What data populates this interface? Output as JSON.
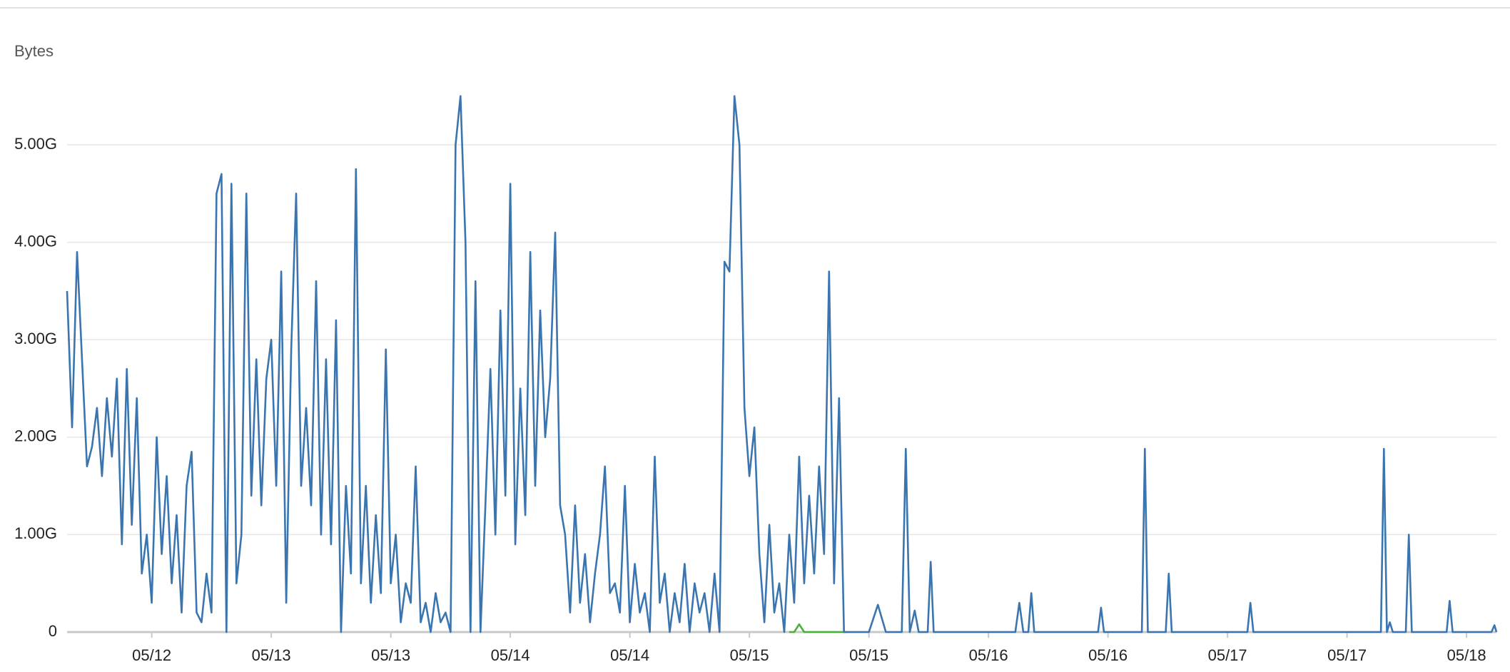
{
  "chart_data": {
    "type": "line",
    "y_axis_label": "Bytes",
    "xlim": [
      0,
      143.5
    ],
    "xticks": [
      {
        "value": 8.5,
        "label": "05/12"
      },
      {
        "value": 20.5,
        "label": "05/13"
      },
      {
        "value": 32.5,
        "label": "05/13"
      },
      {
        "value": 44.5,
        "label": "05/14"
      },
      {
        "value": 56.5,
        "label": "05/14"
      },
      {
        "value": 68.5,
        "label": "05/15"
      },
      {
        "value": 80.5,
        "label": "05/15"
      },
      {
        "value": 92.5,
        "label": "05/16"
      },
      {
        "value": 104.5,
        "label": "05/16"
      },
      {
        "value": 116.5,
        "label": "05/17"
      },
      {
        "value": 128.5,
        "label": "05/17"
      },
      {
        "value": 140.5,
        "label": "05/18"
      }
    ],
    "ylim": [
      0,
      5.6
    ],
    "yticks": [
      0,
      {
        "value": 1,
        "label": "1.00G"
      },
      {
        "value": 2,
        "label": "2.00G"
      },
      {
        "value": 3,
        "label": "3.00G"
      },
      {
        "value": 4,
        "label": "4.00G"
      },
      {
        "value": 5,
        "label": "5.00G"
      }
    ],
    "grid": true,
    "series": [
      {
        "color": "#3a75b0",
        "x": [
          0,
          0.5,
          1,
          1.5,
          2,
          2.5,
          3,
          3.5,
          4,
          4.5,
          5,
          5.5,
          6,
          6.5,
          7,
          7.5,
          8,
          8.5,
          9,
          9.5,
          10,
          10.5,
          11,
          11.5,
          12,
          12.5,
          13,
          13.5,
          14,
          14.5,
          15,
          15.5,
          16,
          16.5,
          17,
          17.5,
          18,
          18.5,
          19,
          19.5,
          20,
          20.5,
          21,
          21.5,
          22,
          22.5,
          23,
          23.5,
          24,
          24.5,
          25,
          25.5,
          26,
          26.5,
          27,
          27.5,
          28,
          28.5,
          29,
          29.5,
          30,
          30.5,
          31,
          31.5,
          32,
          32.5,
          33,
          33.5,
          34,
          34.5,
          35,
          35.5,
          36,
          36.5,
          37,
          37.5,
          38,
          38.5,
          39,
          39.5,
          40,
          40.5,
          41,
          41.5,
          42,
          42.5,
          43,
          43.5,
          44,
          44.5,
          45,
          45.5,
          46,
          46.5,
          47,
          47.5,
          48,
          48.5,
          49,
          49.5,
          50,
          50.5,
          51,
          51.5,
          52,
          52.5,
          53,
          53.5,
          54,
          54.5,
          55,
          55.5,
          56,
          56.5,
          57,
          57.5,
          58,
          58.5,
          59,
          59.5,
          60,
          60.5,
          61,
          61.5,
          62,
          62.5,
          63,
          63.5,
          64,
          64.5,
          65,
          65.5,
          66,
          66.5,
          67,
          67.5,
          68,
          68.5,
          69,
          69.5,
          70,
          70.5,
          71,
          71.5,
          72,
          72.5,
          73,
          73.5,
          74,
          74.5,
          75,
          75.5,
          76,
          76.5,
          77,
          77.5,
          78,
          80.5,
          81.4,
          82.2,
          83.8,
          84.2,
          84.6,
          85.1,
          85.5,
          86.4,
          86.7,
          87,
          95.2,
          95.6,
          96,
          96.5,
          96.8,
          97.1,
          103.5,
          103.8,
          104.1,
          107.9,
          108.2,
          108.5,
          110.3,
          110.6,
          110.9,
          118.5,
          118.8,
          119.1,
          131.9,
          132.2,
          132.5,
          132.8,
          133.1,
          134.4,
          134.7,
          135,
          138.5,
          138.8,
          139.1,
          143,
          143.3,
          143.5
        ],
        "values": [
          3.5,
          2.1,
          3.9,
          2.8,
          1.7,
          1.9,
          2.3,
          1.6,
          2.4,
          1.8,
          2.6,
          0.9,
          2.7,
          1.1,
          2.4,
          0.6,
          1.0,
          0.3,
          2.0,
          0.8,
          1.6,
          0.5,
          1.2,
          0.2,
          1.5,
          1.85,
          0.2,
          0.1,
          0.6,
          0.2,
          4.5,
          4.7,
          0.0,
          4.6,
          0.5,
          1.0,
          4.5,
          1.4,
          2.8,
          1.3,
          2.6,
          3.0,
          1.5,
          3.7,
          0.3,
          2.9,
          4.5,
          1.5,
          2.3,
          1.3,
          3.6,
          1.0,
          2.8,
          0.9,
          3.2,
          0.0,
          1.5,
          0.6,
          4.75,
          0.5,
          1.5,
          0.3,
          1.2,
          0.4,
          2.9,
          0.5,
          1.0,
          0.1,
          0.5,
          0.3,
          1.7,
          0.1,
          0.3,
          0.0,
          0.4,
          0.1,
          0.2,
          0.0,
          5.0,
          5.5,
          4.0,
          0.0,
          3.6,
          0.0,
          1.3,
          2.7,
          1.0,
          3.3,
          1.4,
          4.6,
          0.9,
          2.5,
          1.2,
          3.9,
          1.5,
          3.3,
          2.0,
          2.6,
          4.1,
          1.3,
          1.0,
          0.2,
          1.3,
          0.3,
          0.8,
          0.1,
          0.6,
          1.0,
          1.7,
          0.4,
          0.5,
          0.2,
          1.5,
          0.1,
          0.7,
          0.2,
          0.4,
          0.0,
          1.8,
          0.3,
          0.6,
          0.0,
          0.4,
          0.1,
          0.7,
          0.0,
          0.5,
          0.2,
          0.4,
          0.0,
          0.6,
          0.0,
          3.8,
          3.7,
          5.5,
          5.0,
          2.3,
          1.6,
          2.1,
          0.8,
          0.1,
          1.1,
          0.2,
          0.5,
          0.0,
          1.0,
          0.3,
          1.8,
          0.5,
          1.4,
          0.6,
          1.7,
          0.8,
          3.7,
          0.5,
          2.4,
          0.0,
          0,
          0.28,
          0,
          0,
          1.88,
          0,
          0.22,
          0,
          0,
          0.72,
          0,
          0,
          0.3,
          0,
          0,
          0.4,
          0,
          0,
          0.25,
          0,
          0,
          1.88,
          0,
          0,
          0.6,
          0,
          0,
          0.3,
          0,
          0,
          1.88,
          0,
          0.1,
          0,
          0,
          1.0,
          0,
          0,
          0.32,
          0,
          0,
          0.07,
          0
        ]
      },
      {
        "color": "#4caf3a",
        "x": [
          72.5,
          73,
          73.5,
          74,
          75,
          76,
          77,
          78.4
        ],
        "values": [
          0,
          0,
          0.08,
          0,
          0,
          0,
          0,
          0
        ]
      }
    ]
  }
}
